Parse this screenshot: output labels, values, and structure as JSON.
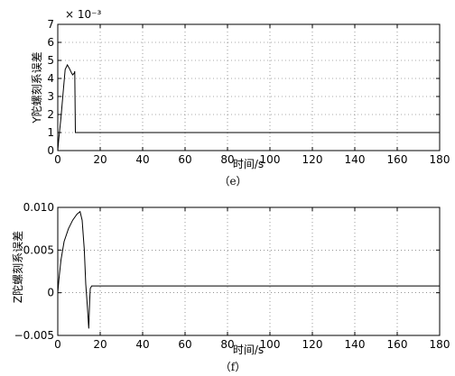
{
  "chart_data": [
    {
      "id": "e",
      "type": "line",
      "caption": "（e）",
      "xlabel": "时间/s",
      "ylabel": "Y陀螺刻系误差",
      "y_exponent": "× 10⁻³",
      "xlim": [
        0,
        180
      ],
      "ylim": [
        0,
        7
      ],
      "x_ticks": [
        "0",
        "20",
        "40",
        "60",
        "80",
        "100",
        "120",
        "140",
        "160",
        "180"
      ],
      "y_ticks": [
        "0",
        "1",
        "2",
        "3",
        "4",
        "5",
        "6",
        "7"
      ],
      "grid": true,
      "series": [
        {
          "x": [
            0,
            0.5,
            1.5,
            2.5,
            3.5,
            4.5,
            5.5,
            6.5,
            7,
            7.8,
            8,
            8.3,
            180
          ],
          "y": [
            0,
            0.7,
            1.8,
            3.2,
            4.5,
            4.75,
            4.55,
            4.3,
            4.2,
            4.3,
            4.4,
            1.0,
            1.0
          ]
        }
      ]
    },
    {
      "id": "f",
      "type": "line",
      "caption": "（f）",
      "xlabel": "时间/s",
      "ylabel": "Z陀螺刻系误差",
      "xlim": [
        0,
        180
      ],
      "ylim": [
        -0.005,
        0.01
      ],
      "x_ticks": [
        "0",
        "20",
        "40",
        "60",
        "80",
        "100",
        "120",
        "140",
        "160",
        "180"
      ],
      "y_ticks": [
        "−0.005",
        "0",
        "0.005",
        "0.010"
      ],
      "grid": true,
      "series": [
        {
          "x": [
            0,
            0.5,
            1.5,
            3,
            5,
            7,
            9,
            10.5,
            11.5,
            12.5,
            13.2,
            14,
            14.6,
            15,
            15.3,
            16,
            17,
            180
          ],
          "y": [
            0,
            0.0015,
            0.0038,
            0.006,
            0.0075,
            0.0085,
            0.0092,
            0.0095,
            0.0085,
            0.005,
            0.001,
            -0.0018,
            -0.0042,
            -0.001,
            0.0005,
            0.0008,
            0.0008,
            0.0008
          ]
        }
      ]
    }
  ]
}
